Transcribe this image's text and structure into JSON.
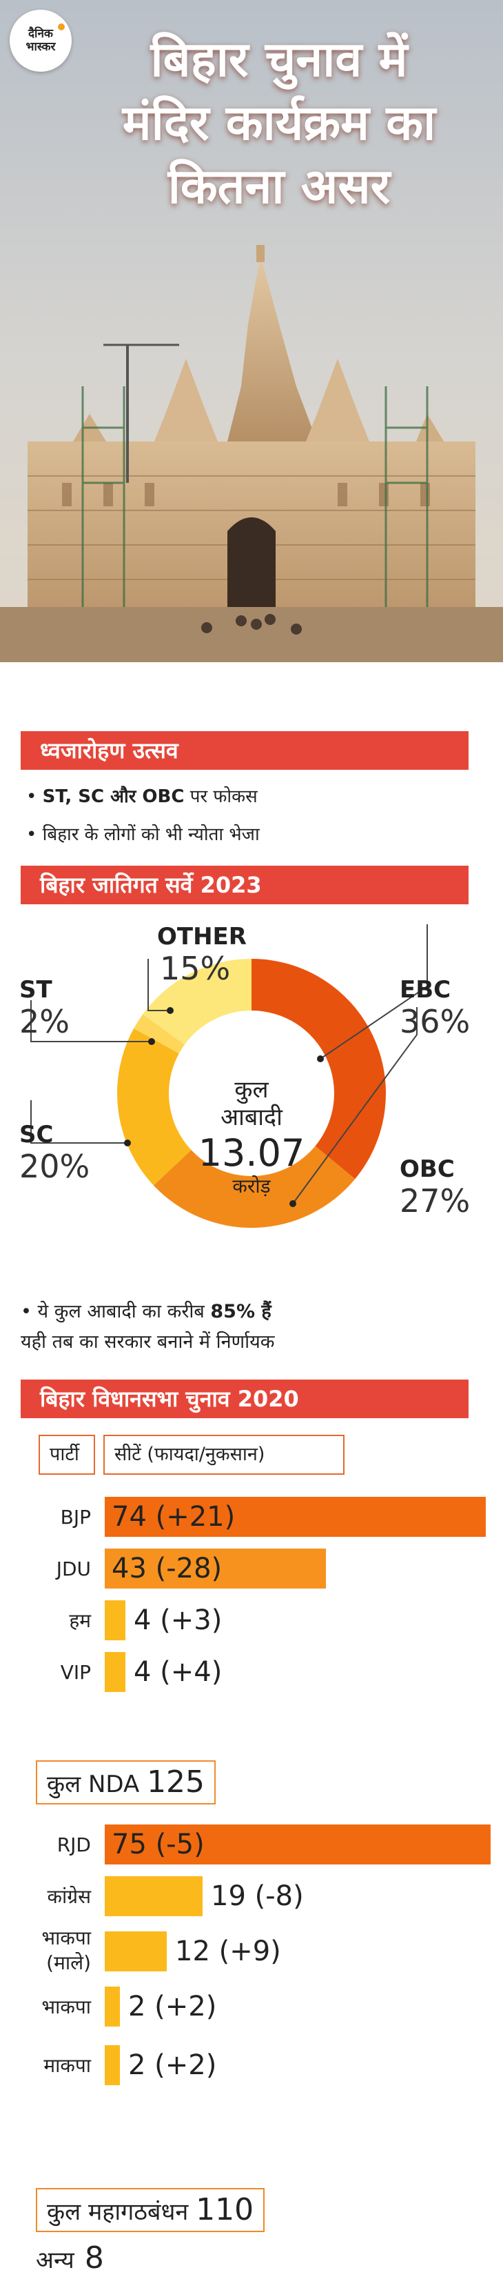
{
  "header": {
    "logo_line1": "दैनिक",
    "logo_line2": "भास्कर",
    "title_lines": [
      "बिहार चुनाव में",
      "मंदिर कार्यक्रम का",
      "कितना असर"
    ]
  },
  "section1": {
    "heading": "ध्वजारोहण उत्सव",
    "bullets": [
      {
        "bold": "ST, SC और OBC",
        "rest": " पर फोकस"
      },
      {
        "bold": "",
        "rest": "बिहार के लोगों को भी न्योता भेजा"
      }
    ]
  },
  "section2": {
    "heading": "बिहार जातिगत सर्वे 2023",
    "center_line1": "कुल",
    "center_line2": "आबादी",
    "center_value": "13.07",
    "center_unit": "करोड़",
    "note_line1_prefix": "• ये कुल आबादी का करीब ",
    "note_line1_bold": "85% हैं",
    "note_line2": "यही तब का सरकार बनाने में निर्णायक"
  },
  "section3": {
    "heading": "बिहार विधानसभा चुनाव 2020",
    "col_party": "पार्टी",
    "col_seats": "सीटें (फायदा/नुकसान)",
    "nda_total_label": "कुल NDA",
    "nda_total_value": "125",
    "mgb_total_label": "कुल महागठबंधन",
    "mgb_total_value": "110",
    "others_label": "अन्य",
    "others_value": "8"
  },
  "colors": {
    "band": "#e6463a",
    "ebc": "#e8520f",
    "obc": "#f28a1a",
    "sc": "#fbb81c",
    "st": "#fdd65a",
    "other": "#fde77a",
    "bar_dark": "#f26a0f",
    "bar_mid": "#f7921e",
    "bar_light": "#fbb91c"
  },
  "chart_data": [
    {
      "type": "pie",
      "title": "बिहार जातिगत सर्वे 2023",
      "categories": [
        "EBC",
        "OBC",
        "SC",
        "ST",
        "OTHER"
      ],
      "values": [
        36,
        27,
        20,
        2,
        15
      ],
      "value_labels": [
        "36%",
        "27%",
        "20%",
        "2%",
        "15%"
      ],
      "unit": "%",
      "center_text": "कुल आबादी 13.07 करोड़"
    },
    {
      "type": "bar",
      "title": "बिहार विधानसभा चुनाव 2020",
      "categories": [
        "BJP",
        "JDU",
        "हम",
        "VIP",
        "RJD",
        "कांग्रेस",
        "भाकपा (माले)",
        "भाकपा",
        "माकपा"
      ],
      "category_lines": [
        [
          "BJP"
        ],
        [
          "JDU"
        ],
        [
          "हम"
        ],
        [
          "VIP"
        ],
        [
          "RJD"
        ],
        [
          "कांग्रेस"
        ],
        [
          "भाकपा",
          "(माले)"
        ],
        [
          "भाकपा"
        ],
        [
          "माकपा"
        ]
      ],
      "values": [
        74,
        43,
        4,
        4,
        75,
        19,
        12,
        2,
        2
      ],
      "change_labels": [
        "(+21)",
        "(-28)",
        "(+3)",
        "(+4)",
        "(-5)",
        "(-8)",
        "(+9)",
        "(+2)",
        "(+2)"
      ],
      "xlim": [
        0,
        75
      ]
    }
  ]
}
